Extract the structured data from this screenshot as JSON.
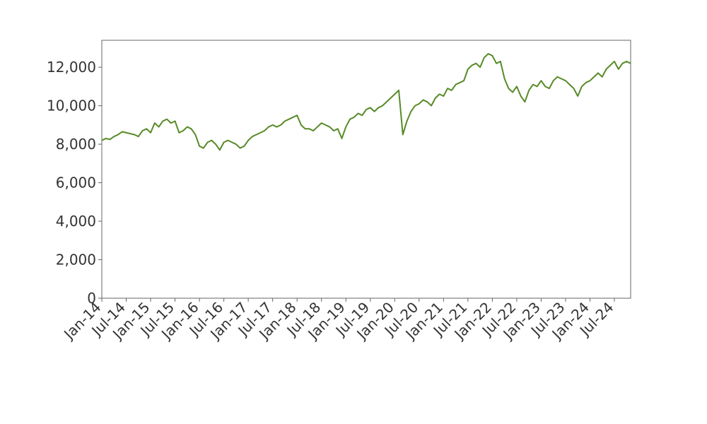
{
  "chart_data": {
    "type": "line",
    "color": "#578a28",
    "x": [
      "Jan-14",
      "Feb-14",
      "Mar-14",
      "Apr-14",
      "May-14",
      "Jun-14",
      "Jul-14",
      "Aug-14",
      "Sep-14",
      "Oct-14",
      "Nov-14",
      "Dec-14",
      "Jan-15",
      "Feb-15",
      "Mar-15",
      "Apr-15",
      "May-15",
      "Jun-15",
      "Jul-15",
      "Aug-15",
      "Sep-15",
      "Oct-15",
      "Nov-15",
      "Dec-15",
      "Jan-16",
      "Feb-16",
      "Mar-16",
      "Apr-16",
      "May-16",
      "Jun-16",
      "Jul-16",
      "Aug-16",
      "Sep-16",
      "Oct-16",
      "Nov-16",
      "Dec-16",
      "Jan-17",
      "Feb-17",
      "Mar-17",
      "Apr-17",
      "May-17",
      "Jun-17",
      "Jul-17",
      "Aug-17",
      "Sep-17",
      "Oct-17",
      "Nov-17",
      "Dec-17",
      "Jan-18",
      "Feb-18",
      "Mar-18",
      "Apr-18",
      "May-18",
      "Jun-18",
      "Jul-18",
      "Aug-18",
      "Sep-18",
      "Oct-18",
      "Nov-18",
      "Dec-18",
      "Jan-19",
      "Feb-19",
      "Mar-19",
      "Apr-19",
      "May-19",
      "Jun-19",
      "Jul-19",
      "Aug-19",
      "Sep-19",
      "Oct-19",
      "Nov-19",
      "Dec-19",
      "Jan-20",
      "Feb-20",
      "Mar-20",
      "Apr-20",
      "May-20",
      "Jun-20",
      "Jul-20",
      "Aug-20",
      "Sep-20",
      "Oct-20",
      "Nov-20",
      "Dec-20",
      "Jan-21",
      "Feb-21",
      "Mar-21",
      "Apr-21",
      "May-21",
      "Jun-21",
      "Jul-21",
      "Aug-21",
      "Sep-21",
      "Oct-21",
      "Nov-21",
      "Dec-21",
      "Jan-22",
      "Feb-22",
      "Mar-22",
      "Apr-22",
      "May-22",
      "Jun-22",
      "Jul-22",
      "Aug-22",
      "Sep-22",
      "Oct-22",
      "Nov-22",
      "Dec-22",
      "Jan-23",
      "Feb-23",
      "Mar-23",
      "Apr-23",
      "May-23",
      "Jun-23",
      "Jul-23",
      "Aug-23",
      "Sep-23",
      "Oct-23",
      "Nov-23",
      "Dec-23",
      "Jan-24",
      "Feb-24",
      "Mar-24",
      "Apr-24",
      "May-24",
      "Jun-24",
      "Jul-24",
      "Aug-24",
      "Sep-24",
      "Oct-24",
      "Nov-24"
    ],
    "values": [
      8200,
      8300,
      8250,
      8400,
      8500,
      8650,
      8600,
      8550,
      8500,
      8400,
      8700,
      8800,
      8600,
      9100,
      8900,
      9200,
      9300,
      9100,
      9200,
      8600,
      8700,
      8900,
      8800,
      8500,
      7900,
      7800,
      8100,
      8200,
      8000,
      7700,
      8100,
      8200,
      8100,
      8000,
      7800,
      7900,
      8200,
      8400,
      8500,
      8600,
      8700,
      8900,
      9000,
      8900,
      9000,
      9200,
      9300,
      9400,
      9500,
      9000,
      8800,
      8800,
      8700,
      8900,
      9100,
      9000,
      8900,
      8700,
      8800,
      8300,
      8900,
      9300,
      9400,
      9600,
      9500,
      9800,
      9900,
      9700,
      9900,
      10000,
      10200,
      10400,
      10600,
      10800,
      8500,
      9200,
      9700,
      10000,
      10100,
      10300,
      10200,
      10000,
      10400,
      10600,
      10500,
      10900,
      10800,
      11100,
      11200,
      11300,
      11900,
      12100,
      12200,
      12000,
      12500,
      12700,
      12600,
      12200,
      12300,
      11400,
      10900,
      10700,
      11000,
      10500,
      10200,
      10800,
      11100,
      11000,
      11300,
      11000,
      10900,
      11300,
      11500,
      11400,
      11300,
      11100,
      10900,
      10500,
      11000,
      11200,
      11300,
      11500,
      11700,
      11500,
      11900,
      12100,
      12300,
      11900,
      12200,
      12300,
      12200
    ],
    "xlim": [
      "Jan-14",
      "Nov-24"
    ],
    "xticks": [
      "Jan-14",
      "Jul-14",
      "Jan-15",
      "Jul-15",
      "Jan-16",
      "Jul-16",
      "Jan-17",
      "Jul-17",
      "Jan-18",
      "Jul-18",
      "Jan-19",
      "Jul-19",
      "Jan-20",
      "Jul-20",
      "Jan-21",
      "Jul-21",
      "Jan-22",
      "Jul-22",
      "Jan-23",
      "Jul-23",
      "Jan-24",
      "Jul-24"
    ],
    "ylim": [
      0,
      13400
    ],
    "yticks": [
      0,
      {
        "value": 2000,
        "label": "2,000"
      },
      {
        "value": 4000,
        "label": "4,000"
      },
      {
        "value": 6000,
        "label": "6,000"
      },
      {
        "value": 8000,
        "label": "8,000"
      },
      {
        "value": 10000,
        "label": "10,000"
      },
      {
        "value": 12000,
        "label": "12,000"
      }
    ]
  }
}
